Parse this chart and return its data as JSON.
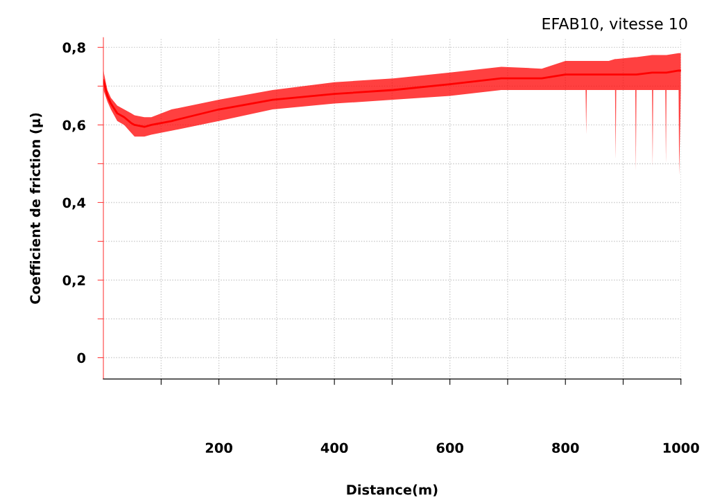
{
  "chart_data": {
    "type": "line",
    "title": "EFAB10, vitesse 10",
    "xlabel": "Distance(m)",
    "ylabel": "Coefficient de friction (µ)",
    "xlim": [
      0,
      1000
    ],
    "ylim": [
      -0.055,
      0.825
    ],
    "xticks": [
      {
        "value": 100,
        "label": null
      },
      200,
      {
        "value": 300,
        "label": null
      },
      400,
      {
        "value": 500,
        "label": null
      },
      600,
      {
        "value": 700,
        "label": null
      },
      800,
      {
        "value": 900,
        "label": null
      },
      1000
    ],
    "yticks": [
      {
        "value": 0,
        "label": "0"
      },
      {
        "value": 0.1,
        "label": null
      },
      {
        "value": 0.2,
        "label": "0,2"
      },
      {
        "value": 0.3,
        "label": null
      },
      {
        "value": 0.4,
        "label": "0,4"
      },
      {
        "value": 0.5,
        "label": null
      },
      {
        "value": 0.6,
        "label": "0,6"
      },
      {
        "value": 0.7,
        "label": null
      },
      {
        "value": 0.8,
        "label": "0,8"
      }
    ],
    "grid": true,
    "line_style": "solid",
    "marker": "none",
    "series": [
      {
        "color": "#ff0000",
        "x": [
          0,
          7,
          13,
          24,
          36,
          48,
          54,
          71,
          83,
          118,
          200,
          293,
          400,
          502,
          600,
          689,
          759,
          800,
          835,
          836,
          837,
          875,
          886,
          887,
          888,
          921,
          922,
          923,
          950,
          951,
          952,
          973,
          974,
          975,
          996,
          997,
          1000
        ],
        "values": [
          0.715,
          0.675,
          0.655,
          0.63,
          0.62,
          0.605,
          0.6,
          0.595,
          0.6,
          0.61,
          0.64,
          0.665,
          0.68,
          0.69,
          0.705,
          0.72,
          0.72,
          0.73,
          0.73,
          0.73,
          0.73,
          0.73,
          0.73,
          0.73,
          0.73,
          0.73,
          0.73,
          0.73,
          0.735,
          0.735,
          0.735,
          0.735,
          0.735,
          0.735,
          0.74,
          0.74,
          0.74
        ],
        "upper": [
          0.74,
          0.69,
          0.67,
          0.65,
          0.64,
          0.63,
          0.625,
          0.62,
          0.62,
          0.64,
          0.665,
          0.69,
          0.71,
          0.72,
          0.735,
          0.75,
          0.745,
          0.765,
          0.765,
          0.765,
          0.765,
          0.765,
          0.77,
          0.77,
          0.77,
          0.775,
          0.775,
          0.775,
          0.78,
          0.78,
          0.78,
          0.78,
          0.78,
          0.78,
          0.785,
          0.785,
          0.785
        ],
        "lower": [
          0.69,
          0.66,
          0.64,
          0.61,
          0.6,
          0.58,
          0.57,
          0.57,
          0.575,
          0.585,
          0.61,
          0.64,
          0.655,
          0.665,
          0.675,
          0.69,
          0.69,
          0.69,
          0.69,
          0.575,
          0.69,
          0.69,
          0.69,
          0.51,
          0.69,
          0.69,
          0.48,
          0.69,
          0.69,
          0.49,
          0.69,
          0.69,
          0.5,
          0.69,
          0.69,
          0.47,
          0.69
        ]
      }
    ]
  }
}
